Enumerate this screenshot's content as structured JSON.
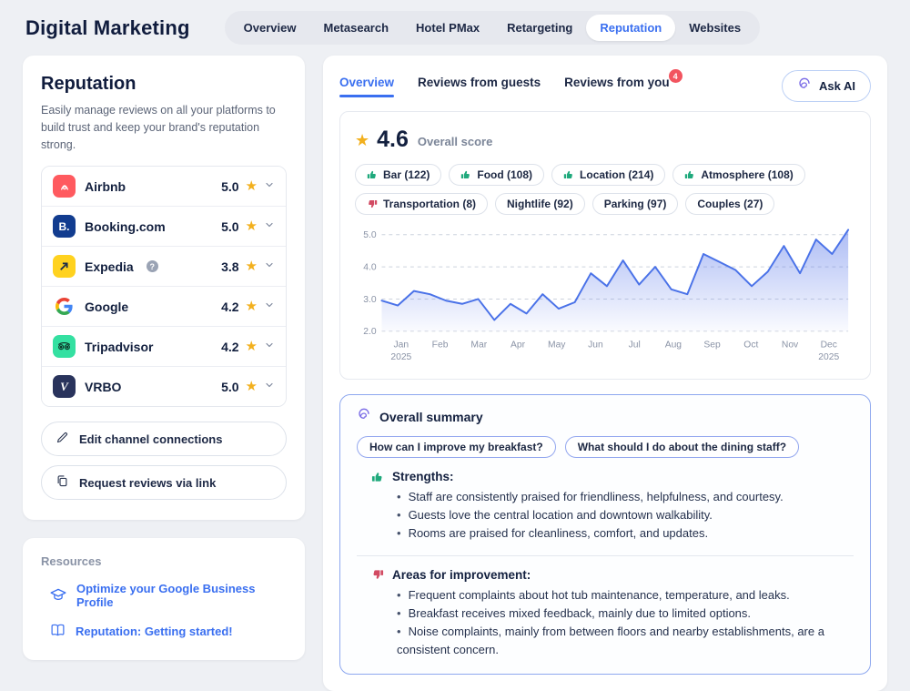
{
  "header": {
    "app_title": "Digital Marketing",
    "nav_tabs": [
      {
        "label": "Overview",
        "active": false
      },
      {
        "label": "Metasearch",
        "active": false
      },
      {
        "label": "Hotel PMax",
        "active": false
      },
      {
        "label": "Retargeting",
        "active": false
      },
      {
        "label": "Reputation",
        "active": true
      },
      {
        "label": "Websites",
        "active": false
      }
    ]
  },
  "sidebar": {
    "title": "Reputation",
    "description": "Easily manage reviews on all your platforms to build trust and keep your brand's reputation strong.",
    "channels": [
      {
        "name": "Airbnb",
        "rating": "5.0",
        "icon": "airbnb",
        "has_help": false
      },
      {
        "name": "Booking.com",
        "rating": "5.0",
        "icon": "booking",
        "has_help": false
      },
      {
        "name": "Expedia",
        "rating": "3.8",
        "icon": "expedia",
        "has_help": true
      },
      {
        "name": "Google",
        "rating": "4.2",
        "icon": "google",
        "has_help": false
      },
      {
        "name": "Tripadvisor",
        "rating": "4.2",
        "icon": "tripadvisor",
        "has_help": false
      },
      {
        "name": "VRBO",
        "rating": "5.0",
        "icon": "vrbo",
        "has_help": false
      }
    ],
    "buttons": {
      "edit": "Edit channel connections",
      "request": "Request reviews via link"
    }
  },
  "resources": {
    "title": "Resources",
    "links": [
      {
        "label": "Optimize your Google Business Profile",
        "icon": "graduation-cap"
      },
      {
        "label": "Reputation: Getting started!",
        "icon": "open-book"
      }
    ]
  },
  "main": {
    "tabs": [
      {
        "label": "Overview",
        "active": true,
        "badge": null
      },
      {
        "label": "Reviews from guests",
        "active": false,
        "badge": null
      },
      {
        "label": "Reviews from you",
        "active": false,
        "badge": "4"
      }
    ],
    "ask_ai_label": "Ask AI",
    "overview": {
      "score": "4.6",
      "score_label": "Overall score",
      "chips": [
        {
          "label": "Bar",
          "count": "122",
          "sentiment": "up"
        },
        {
          "label": "Food",
          "count": "108",
          "sentiment": "up"
        },
        {
          "label": "Location",
          "count": "214",
          "sentiment": "up"
        },
        {
          "label": "Atmosphere",
          "count": "108",
          "sentiment": "up"
        },
        {
          "label": "Transportation",
          "count": "8",
          "sentiment": "down"
        },
        {
          "label": "Nightlife",
          "count": "92",
          "sentiment": "none"
        },
        {
          "label": "Parking",
          "count": "97",
          "sentiment": "none"
        },
        {
          "label": "Couples",
          "count": "27",
          "sentiment": "none"
        }
      ]
    },
    "summary": {
      "title": "Overall summary",
      "suggestions": [
        "How can I improve my breakfast?",
        "What should I do about the dining staff?"
      ],
      "strengths_title": "Strengths:",
      "strengths": [
        "Staff are consistently praised for friendliness, helpfulness, and courtesy.",
        "Guests love the central location and downtown walkability.",
        "Rooms are praised for cleanliness, comfort, and updates."
      ],
      "improvements_title": "Areas for improvement:",
      "improvements": [
        "Frequent complaints about hot tub maintenance, temperature, and leaks.",
        "Breakfast receives mixed feedback, mainly due to limited options.",
        "Noise complaints, mainly from between floors and nearby establishments, are a consistent concern."
      ]
    }
  },
  "chart_data": {
    "type": "area",
    "title": "",
    "xlabel": "",
    "ylabel": "",
    "x_ticks": [
      {
        "month": "Jan",
        "year": "2025"
      },
      {
        "month": "Feb",
        "year": ""
      },
      {
        "month": "Mar",
        "year": ""
      },
      {
        "month": "Apr",
        "year": ""
      },
      {
        "month": "May",
        "year": ""
      },
      {
        "month": "Jun",
        "year": ""
      },
      {
        "month": "Jul",
        "year": ""
      },
      {
        "month": "Aug",
        "year": ""
      },
      {
        "month": "Sep",
        "year": ""
      },
      {
        "month": "Oct",
        "year": ""
      },
      {
        "month": "Nov",
        "year": ""
      },
      {
        "month": "Dec",
        "year": "2025"
      }
    ],
    "values": [
      2.95,
      2.8,
      3.25,
      3.15,
      2.95,
      2.85,
      3.0,
      2.35,
      2.85,
      2.55,
      3.15,
      2.7,
      2.9,
      3.8,
      3.4,
      4.2,
      3.45,
      4.0,
      3.3,
      3.15,
      4.4,
      4.15,
      3.9,
      3.4,
      3.85,
      4.65,
      3.8,
      4.85,
      4.4,
      5.15
    ],
    "yticks": [
      2.0,
      3.0,
      4.0,
      5.0
    ],
    "ylim": [
      2.0,
      5.2
    ],
    "grid": true,
    "legend": false,
    "line_color": "#4a72e8",
    "fill_color": "#5b79ea"
  },
  "colors": {
    "accent_blue": "#3a6ff0",
    "navy": "#13203f",
    "star_yellow": "#f2b01e",
    "positive_green": "#1fa97c",
    "negative_red": "#d24b63",
    "badge_red": "#f2545f",
    "summary_border": "#8ea8ef"
  }
}
